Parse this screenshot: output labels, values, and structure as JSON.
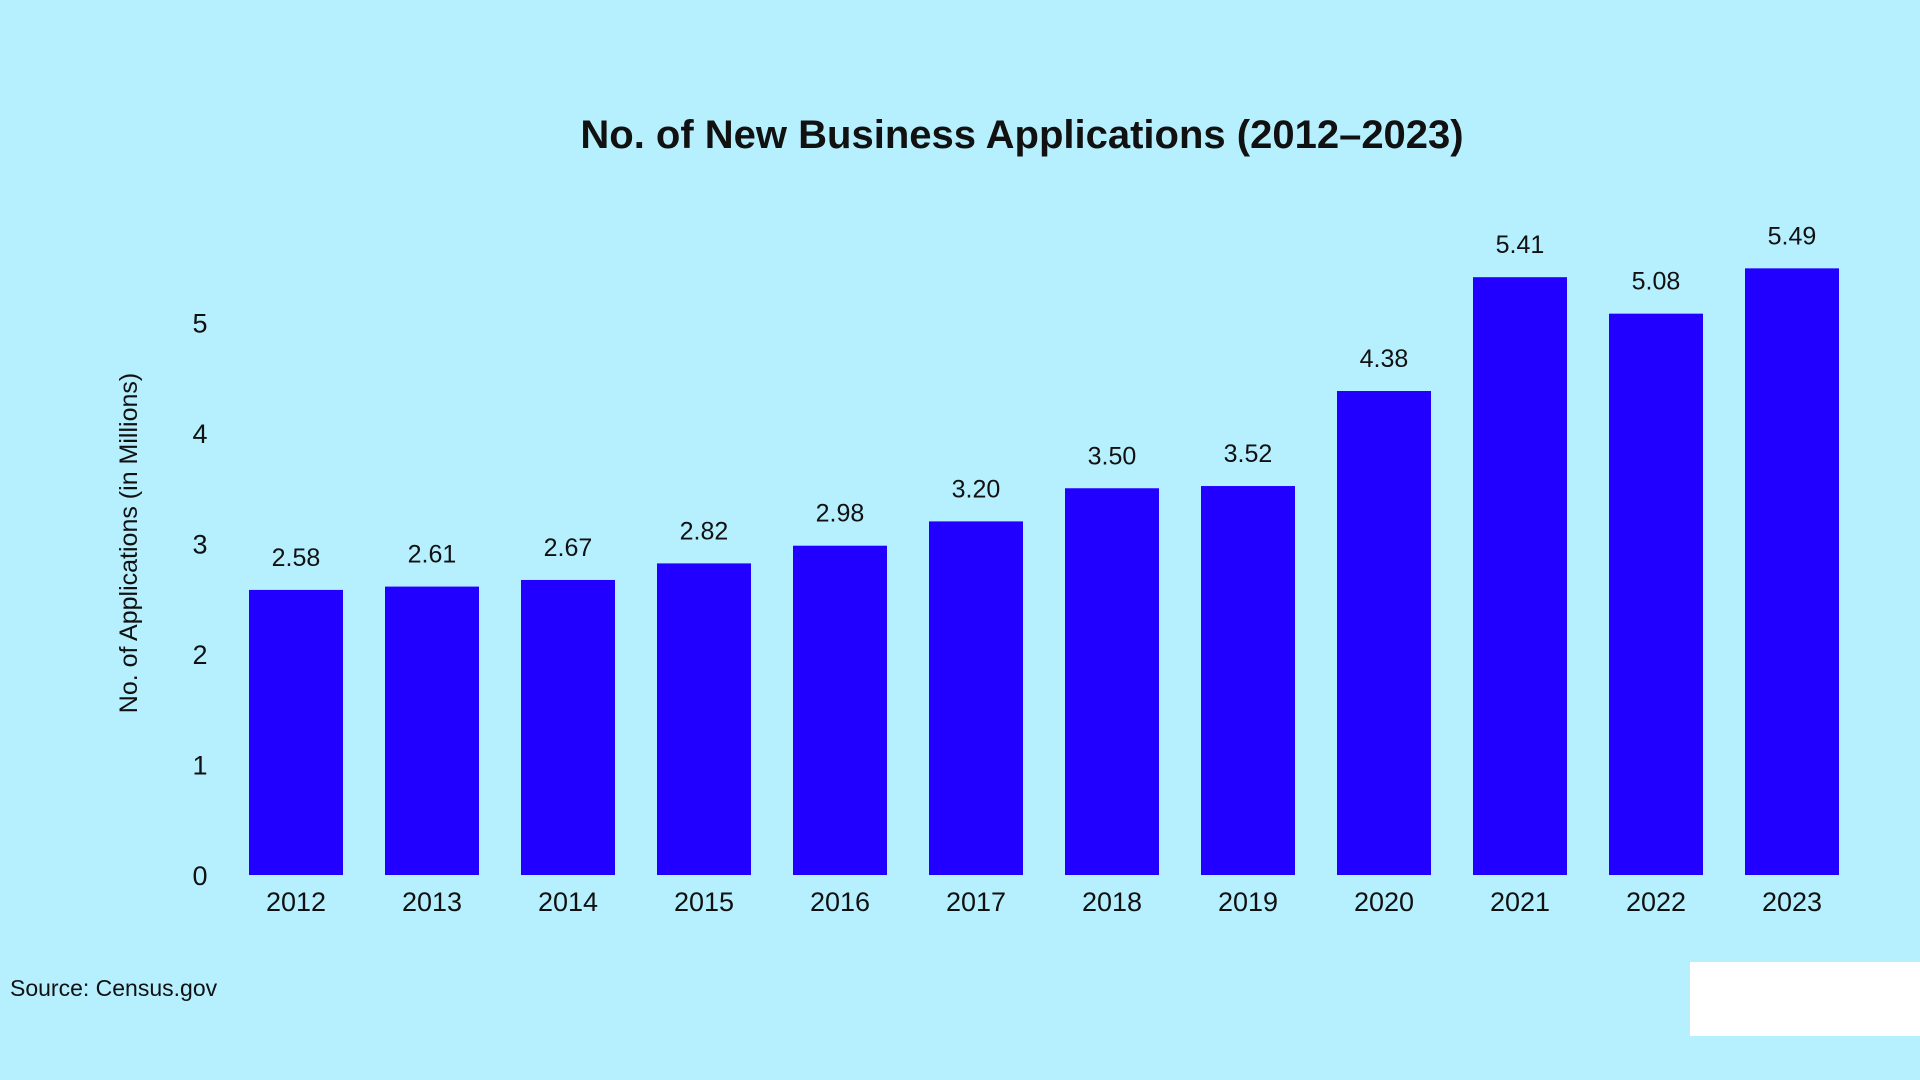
{
  "chart_data": {
    "type": "bar",
    "title": "No. of New Business Applications (2012–2023)",
    "xlabel": "",
    "ylabel": "No. of Applications (in Millions)",
    "categories": [
      "2012",
      "2013",
      "2014",
      "2015",
      "2016",
      "2017",
      "2018",
      "2019",
      "2020",
      "2021",
      "2022",
      "2023"
    ],
    "values": [
      2.58,
      2.61,
      2.67,
      2.82,
      2.98,
      3.2,
      3.5,
      3.52,
      4.38,
      5.41,
      5.08,
      5.49
    ],
    "data_labels": [
      "2.58",
      "2.61",
      "2.67",
      "2.82",
      "2.98",
      "3.20",
      "3.50",
      "3.52",
      "4.38",
      "5.41",
      "5.08",
      "5.49"
    ],
    "ylim": [
      0,
      5.6
    ],
    "yticks": [
      0,
      1,
      2,
      3,
      4,
      5
    ],
    "grid": false,
    "legend": "none",
    "bar_color": "#2200ff"
  },
  "source": "Source: Census.gov"
}
